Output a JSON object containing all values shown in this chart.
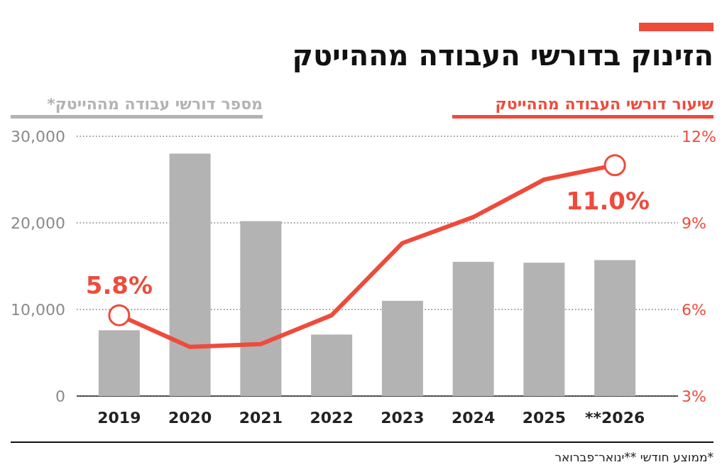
{
  "chart_data": {
    "type": "bar",
    "title": "הזינוק בדורשי העבודה מההייטק",
    "categories": [
      "2019",
      "2020",
      "2021",
      "2022",
      "2023",
      "2024",
      "2025",
      "**2026"
    ],
    "series": [
      {
        "name": "מספר דורשי עבודה מההייטק*",
        "color": "#b3b3b3",
        "values": [
          7600,
          28000,
          20200,
          7100,
          11000,
          15500,
          15400,
          15700
        ]
      },
      {
        "name": "שיעור דורשי העבודה מההייטק",
        "type": "line",
        "axis": "y2",
        "color": "#ee4b3c",
        "values": [
          5.8,
          4.7,
          4.8,
          5.8,
          8.3,
          9.2,
          10.5,
          11.0
        ],
        "value_labels": [
          "5.8%",
          null,
          null,
          null,
          null,
          null,
          null,
          "11.0%"
        ]
      }
    ],
    "ylim": [
      0,
      30000
    ],
    "yticks": [
      0,
      {
        "value": 10000,
        "label": "10,000"
      },
      {
        "value": 20000,
        "label": "20,000"
      },
      {
        "value": 30000,
        "label": "30,000"
      }
    ],
    "y2lim": [
      3,
      12
    ],
    "y2ticks": [
      {
        "value": 3,
        "label": "3%"
      },
      {
        "value": 6,
        "label": "6%"
      },
      {
        "value": 9,
        "label": "9%"
      },
      {
        "value": 12,
        "label": "12%"
      }
    ],
    "grid": "y",
    "legend": "top",
    "annotations": [
      "*ממוצע חודשי **ינואר־פברואר"
    ]
  }
}
